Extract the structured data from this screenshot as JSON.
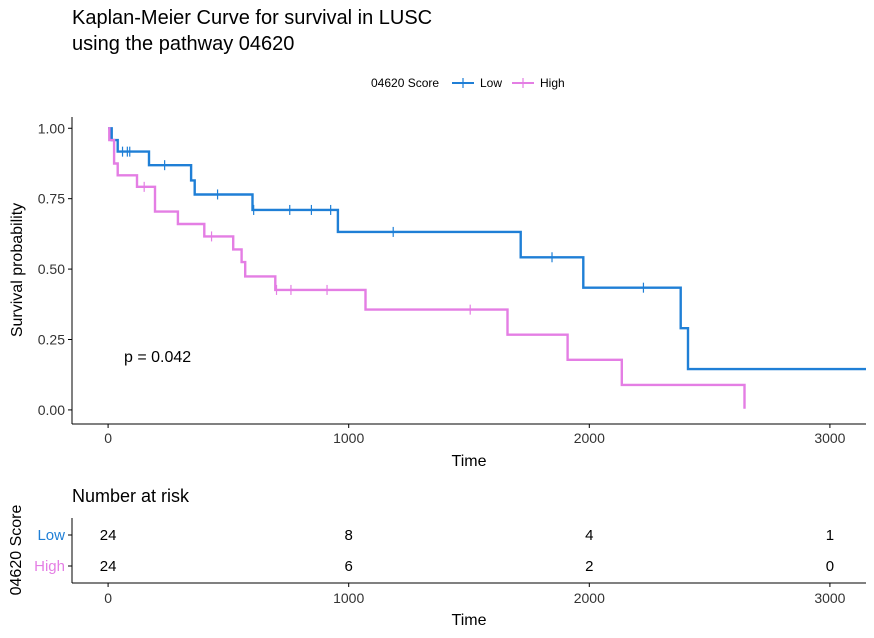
{
  "title_line1": "Kaplan-Meier Curve for survival in LUSC",
  "title_line2": "using the pathway 04620",
  "legend": {
    "title": "04620 Score",
    "entries": [
      "Low",
      "High"
    ]
  },
  "pvalue_text": "p = 0.042",
  "risk_table_title": "Number at risk",
  "risk_table_ylabel": "04620 Score",
  "chart_data": [
    {
      "type": "line",
      "subtype": "kaplan-meier",
      "xlabel": "Time",
      "ylabel": "Survival probability",
      "xlim": [
        -150,
        3150
      ],
      "ylim": [
        -0.05,
        1.04
      ],
      "xticks": [
        0,
        1000,
        2000,
        3000
      ],
      "yticks": [
        0.0,
        0.25,
        0.5,
        0.75,
        1.0
      ],
      "ytick_labels": [
        "0.00",
        "0.25",
        "0.50",
        "0.75",
        "1.00"
      ],
      "grid": false,
      "legend_position": "top",
      "series": [
        {
          "name": "Low",
          "color": "#1f7fd6",
          "steps": [
            [
              0,
              1.0
            ],
            [
              15,
              0.958
            ],
            [
              40,
              0.917
            ],
            [
              170,
              0.869
            ],
            [
              345,
              0.815
            ],
            [
              360,
              0.765
            ],
            [
              600,
              0.71
            ],
            [
              955,
              0.632
            ],
            [
              1715,
              0.542
            ],
            [
              1975,
              0.434
            ],
            [
              2380,
              0.29
            ],
            [
              2410,
              0.145
            ],
            [
              3150,
              0.145
            ]
          ],
          "censors": [
            [
              60,
              0.917
            ],
            [
              80,
              0.917
            ],
            [
              90,
              0.917
            ],
            [
              235,
              0.869
            ],
            [
              455,
              0.765
            ],
            [
              605,
              0.71
            ],
            [
              755,
              0.71
            ],
            [
              845,
              0.71
            ],
            [
              925,
              0.71
            ],
            [
              1185,
              0.632
            ],
            [
              1845,
              0.542
            ],
            [
              2225,
              0.434
            ]
          ]
        },
        {
          "name": "High",
          "color": "#e47ee4",
          "steps": [
            [
              0,
              1.0
            ],
            [
              5,
              0.958
            ],
            [
              25,
              0.875
            ],
            [
              40,
              0.833
            ],
            [
              120,
              0.792
            ],
            [
              195,
              0.704
            ],
            [
              290,
              0.66
            ],
            [
              400,
              0.616
            ],
            [
              520,
              0.57
            ],
            [
              555,
              0.525
            ],
            [
              570,
              0.474
            ],
            [
              695,
              0.426
            ],
            [
              1070,
              0.356
            ],
            [
              1660,
              0.267
            ],
            [
              1910,
              0.178
            ],
            [
              2135,
              0.089
            ],
            [
              2645,
              0.089
            ],
            [
              2645,
              0.004
            ]
          ],
          "censors": [
            [
              150,
              0.792
            ],
            [
              430,
              0.616
            ],
            [
              700,
              0.426
            ],
            [
              760,
              0.426
            ],
            [
              910,
              0.426
            ],
            [
              1505,
              0.356
            ]
          ]
        }
      ],
      "annotations": [
        "p = 0.042"
      ]
    },
    {
      "type": "table",
      "title": "Number at risk",
      "xlabel": "Time",
      "ylabel": "04620 Score",
      "xlim": [
        -150,
        3150
      ],
      "xticks": [
        0,
        1000,
        2000,
        3000
      ],
      "rows": [
        {
          "name": "Low",
          "color": "#1f7fd6",
          "times": [
            0,
            1000,
            2000,
            3000
          ],
          "values": [
            24,
            8,
            4,
            1
          ]
        },
        {
          "name": "High",
          "color": "#e47ee4",
          "times": [
            0,
            1000,
            2000,
            3000
          ],
          "values": [
            24,
            6,
            2,
            0
          ]
        }
      ]
    }
  ]
}
